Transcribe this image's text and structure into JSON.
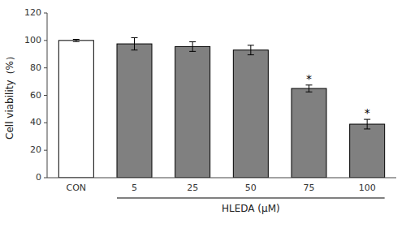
{
  "chart_data": {
    "type": "bar",
    "categories": [
      "CON",
      "5",
      "25",
      "50",
      "75",
      "100"
    ],
    "values": [
      100.0,
      97.5,
      95.5,
      93.0,
      65.0,
      39.0
    ],
    "errors": [
      0.8,
      4.5,
      3.5,
      3.5,
      2.5,
      3.5
    ],
    "colors": [
      "#ffffff",
      "#808080",
      "#808080",
      "#808080",
      "#808080",
      "#808080"
    ],
    "ylabel": "Cell viability（%）",
    "xlabel": "HLEDA (μM)",
    "annotations": [
      {
        "text": "*",
        "category": "75"
      },
      {
        "text": "*",
        "category": "100"
      }
    ],
    "ylim": [
      0,
      120
    ],
    "yticks": [
      0,
      20,
      40,
      60,
      80,
      100,
      120
    ],
    "grid": false
  }
}
